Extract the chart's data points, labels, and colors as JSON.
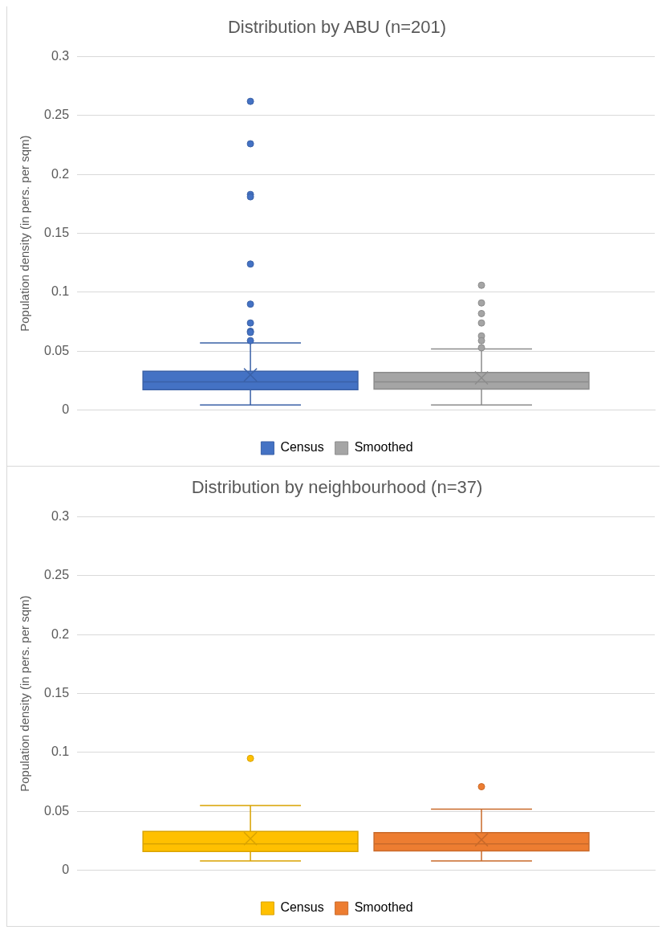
{
  "chart_data": [
    {
      "type": "box",
      "title": "Distribution by ABU (n=201)",
      "ylabel": "Population density (in pers. per sqm)",
      "categories": [
        null
      ],
      "ylim": [
        0,
        0.3
      ],
      "yticks": [
        0,
        0.05,
        0.1,
        0.15,
        0.2,
        0.25,
        0.3
      ],
      "grid": "y",
      "legend": "bottom",
      "series": [
        {
          "name": "Census",
          "color": "#4472c4",
          "boxes": [
            {
              "low": 0.0045,
              "q1": 0.0174,
              "median": 0.024,
              "q3": 0.033,
              "high": 0.057,
              "mean": 0.03,
              "outliers": [
                0.262,
                0.226,
                0.183,
                0.181,
                0.124,
                0.09,
                0.074,
                0.067,
                0.066,
                0.059
              ]
            }
          ]
        },
        {
          "name": "Smoothed",
          "color": "#a5a5a5",
          "boxes": [
            {
              "low": 0.0045,
              "q1": 0.018,
              "median": 0.024,
              "q3": 0.032,
              "high": 0.052,
              "mean": 0.0275,
              "outliers": [
                0.106,
                0.091,
                0.082,
                0.074,
                0.063,
                0.059,
                0.053
              ]
            }
          ]
        }
      ]
    },
    {
      "type": "box",
      "title": "Distribution by neighbourhood (n=37)",
      "ylabel": "Population density (in pers. per sqm)",
      "categories": [
        null
      ],
      "ylim": [
        0,
        0.3
      ],
      "yticks": [
        0,
        0.05,
        0.1,
        0.15,
        0.2,
        0.25,
        0.3
      ],
      "grid": "y",
      "legend": "bottom",
      "series": [
        {
          "name": "Census",
          "color": "#ffc000",
          "boxes": [
            {
              "low": 0.008,
              "q1": 0.016,
              "median": 0.0225,
              "q3": 0.033,
              "high": 0.055,
              "mean": 0.027,
              "outliers": [
                0.095
              ]
            }
          ]
        },
        {
          "name": "Smoothed",
          "color": "#ed7d31",
          "boxes": [
            {
              "low": 0.008,
              "q1": 0.0165,
              "median": 0.0225,
              "q3": 0.032,
              "high": 0.052,
              "mean": 0.026,
              "outliers": [
                0.071
              ]
            }
          ]
        }
      ]
    }
  ]
}
